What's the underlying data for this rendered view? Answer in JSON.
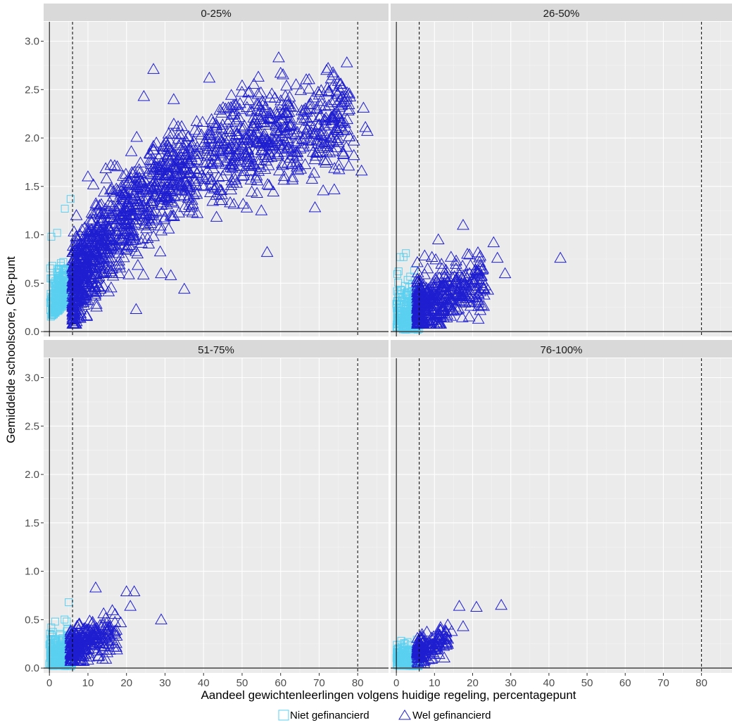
{
  "chart_data": {
    "type": "scatter",
    "xlabel": "Aandeel gewichtenleerlingen volgens huidige regeling, percentagepunt",
    "ylabel": "Gemiddelde schoolscore, Cito-punt",
    "xlim": [
      -1.5,
      88
    ],
    "ylim": [
      -0.05,
      3.2
    ],
    "x_ticks": [
      0,
      10,
      20,
      30,
      40,
      50,
      60,
      70,
      80
    ],
    "y_ticks": [
      "0.0",
      "0.5",
      "1.0",
      "1.5",
      "2.0",
      "2.5",
      "3.0"
    ],
    "reference_lines": {
      "x_solid": 0,
      "x_dashed": [
        6,
        80
      ],
      "y_solid": 0
    },
    "grid": true,
    "legend_position": "bottom",
    "colors": {
      "niet": "#5bd0f0",
      "wel": "#1f1fd0",
      "panel_bg": "#ebebeb",
      "strip_bg": "#d9d9d9",
      "grid": "#ffffff"
    },
    "series": [
      {
        "name": "Niet gefinancierd",
        "marker": "square"
      },
      {
        "name": "Wel gefinancierd",
        "marker": "triangle"
      }
    ],
    "panels": [
      {
        "label": "0-25%",
        "niet_range": {
          "x": [
            0,
            6
          ],
          "y": [
            0.0,
            0.9
          ]
        },
        "wel_range": {
          "x": [
            6,
            83
          ],
          "y": [
            0.1,
            2.85
          ]
        },
        "points": [
          {
            "series": "Niet gefinancierd",
            "x": 0.5,
            "y": 0.98
          },
          {
            "series": "Niet gefinancierd",
            "x": 2.0,
            "y": 1.02
          },
          {
            "series": "Niet gefinancierd",
            "x": 4.0,
            "y": 1.27
          },
          {
            "series": "Niet gefinancierd",
            "x": 5.5,
            "y": 1.37
          },
          {
            "series": "Niet gefinancierd",
            "x": 3.0,
            "y": 0.68
          },
          {
            "series": "Niet gefinancierd",
            "x": 0.3,
            "y": 0.55
          },
          {
            "series": "Wel gefinancierd",
            "x": 59.5,
            "y": 2.83
          },
          {
            "series": "Wel gefinancierd",
            "x": 60,
            "y": 2.67
          },
          {
            "series": "Wel gefinancierd",
            "x": 27,
            "y": 2.71
          },
          {
            "series": "Wel gefinancierd",
            "x": 41.5,
            "y": 2.62
          },
          {
            "series": "Wel gefinancierd",
            "x": 50,
            "y": 2.54
          },
          {
            "series": "Wel gefinancierd",
            "x": 24.5,
            "y": 2.43
          },
          {
            "series": "Wel gefinancierd",
            "x": 74.5,
            "y": 2.48
          },
          {
            "series": "Wel gefinancierd",
            "x": 76,
            "y": 2.37
          },
          {
            "series": "Wel gefinancierd",
            "x": 74,
            "y": 2.25
          },
          {
            "series": "Wel gefinancierd",
            "x": 81.5,
            "y": 2.31
          },
          {
            "series": "Wel gefinancierd",
            "x": 82,
            "y": 2.11
          },
          {
            "series": "Wel gefinancierd",
            "x": 82.5,
            "y": 2.07
          },
          {
            "series": "Wel gefinancierd",
            "x": 79,
            "y": 1.97
          },
          {
            "series": "Wel gefinancierd",
            "x": 79,
            "y": 1.82
          },
          {
            "series": "Wel gefinancierd",
            "x": 81,
            "y": 1.66
          },
          {
            "series": "Wel gefinancierd",
            "x": 70.5,
            "y": 2.03
          },
          {
            "series": "Wel gefinancierd",
            "x": 72,
            "y": 1.85
          },
          {
            "series": "Wel gefinancierd",
            "x": 72,
            "y": 1.77
          },
          {
            "series": "Wel gefinancierd",
            "x": 56.5,
            "y": 0.82
          },
          {
            "series": "Wel gefinancierd",
            "x": 55,
            "y": 1.25
          },
          {
            "series": "Wel gefinancierd",
            "x": 35,
            "y": 0.44
          },
          {
            "series": "Wel gefinancierd",
            "x": 22.5,
            "y": 0.23
          },
          {
            "series": "Wel gefinancierd",
            "x": 29,
            "y": 0.6
          },
          {
            "series": "Wel gefinancierd",
            "x": 31.5,
            "y": 0.58
          },
          {
            "series": "Wel gefinancierd",
            "x": 10,
            "y": 1.6
          },
          {
            "series": "Wel gefinancierd",
            "x": 7,
            "y": 1.2
          }
        ]
      },
      {
        "label": "26-50%",
        "niet_range": {
          "x": [
            0,
            6
          ],
          "y": [
            0.0,
            0.82
          ]
        },
        "wel_range": {
          "x": [
            5,
            30
          ],
          "y": [
            0.05,
            1.1
          ]
        },
        "points": [
          {
            "series": "Wel gefinancierd",
            "x": 43,
            "y": 0.76
          },
          {
            "series": "Wel gefinancierd",
            "x": 17.5,
            "y": 1.1
          },
          {
            "series": "Wel gefinancierd",
            "x": 11,
            "y": 0.95
          },
          {
            "series": "Wel gefinancierd",
            "x": 25.5,
            "y": 0.92
          },
          {
            "series": "Wel gefinancierd",
            "x": 28.5,
            "y": 0.6
          },
          {
            "series": "Wel gefinancierd",
            "x": 26.5,
            "y": 0.76
          },
          {
            "series": "Wel gefinancierd",
            "x": 22,
            "y": 0.22
          },
          {
            "series": "Wel gefinancierd",
            "x": 21.5,
            "y": 0.13
          },
          {
            "series": "Wel gefinancierd",
            "x": 24,
            "y": 0.43
          },
          {
            "series": "Niet gefinancierd",
            "x": 2.5,
            "y": 0.81
          },
          {
            "series": "Niet gefinancierd",
            "x": 1.0,
            "y": 0.77
          }
        ]
      },
      {
        "label": "51-75%",
        "niet_range": {
          "x": [
            0,
            6
          ],
          "y": [
            0.0,
            0.68
          ]
        },
        "wel_range": {
          "x": [
            4,
            22
          ],
          "y": [
            0.05,
            0.85
          ]
        },
        "points": [
          {
            "series": "Wel gefinancierd",
            "x": 12,
            "y": 0.83
          },
          {
            "series": "Wel gefinancierd",
            "x": 20,
            "y": 0.79
          },
          {
            "series": "Wel gefinancierd",
            "x": 22,
            "y": 0.79
          },
          {
            "series": "Wel gefinancierd",
            "x": 21,
            "y": 0.64
          },
          {
            "series": "Wel gefinancierd",
            "x": 29,
            "y": 0.5
          },
          {
            "series": "Wel gefinancierd",
            "x": 18.5,
            "y": 0.47
          },
          {
            "series": "Niet gefinancierd",
            "x": 5,
            "y": 0.68
          }
        ]
      },
      {
        "label": "76-100%",
        "niet_range": {
          "x": [
            0,
            6
          ],
          "y": [
            0.0,
            0.38
          ]
        },
        "wel_range": {
          "x": [
            4,
            14
          ],
          "y": [
            0.02,
            0.48
          ]
        },
        "points": [
          {
            "series": "Wel gefinancierd",
            "x": 16.5,
            "y": 0.64
          },
          {
            "series": "Wel gefinancierd",
            "x": 21,
            "y": 0.63
          },
          {
            "series": "Wel gefinancierd",
            "x": 27.5,
            "y": 0.65
          },
          {
            "series": "Wel gefinancierd",
            "x": 17.5,
            "y": 0.43
          },
          {
            "series": "Wel gefinancierd",
            "x": 14.5,
            "y": 0.38
          },
          {
            "series": "Wel gefinancierd",
            "x": 13.5,
            "y": 0.3
          }
        ]
      }
    ]
  }
}
